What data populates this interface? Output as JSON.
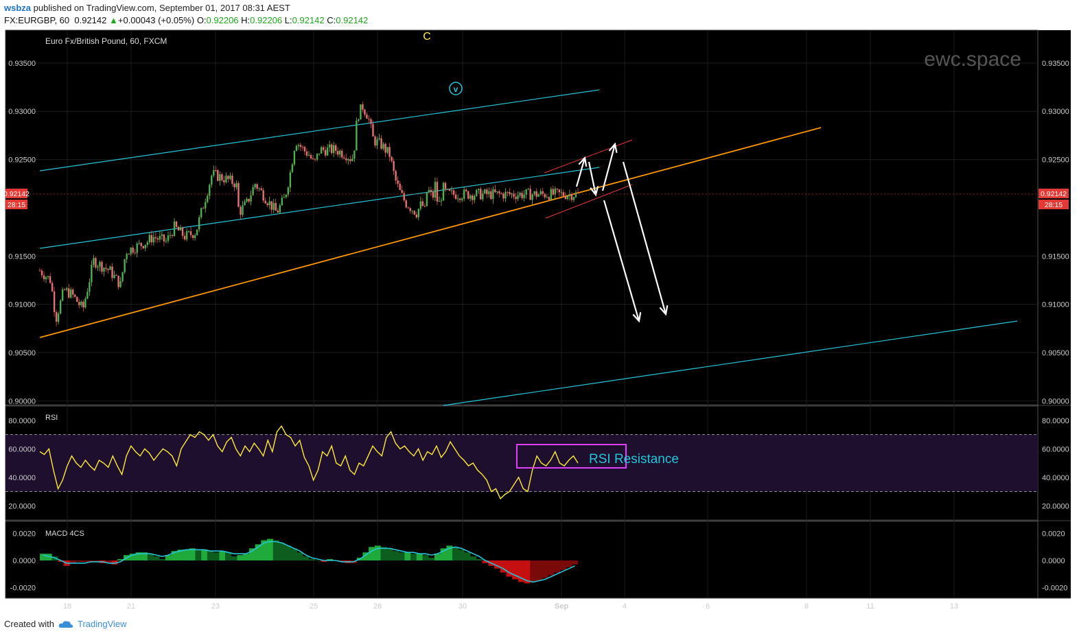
{
  "header": {
    "author": "wsbza",
    "published_text": "published on TradingView.com, September 01, 2017 08:31 AEST",
    "symbol": "FX:EURGBP, 60",
    "last": "0.92142",
    "change": "+0.00043 (+0.05%)",
    "o_label": "O:",
    "o": "0.92206",
    "h_label": "H:",
    "h": "0.92206",
    "l_label": "L:",
    "l": "0.92142",
    "c_label": "C:",
    "c": "0.92142"
  },
  "footer": {
    "created_with": "Created with",
    "brand": "TradingView"
  },
  "chart_data": [
    {
      "type": "candlestick",
      "title": "Euro Fx/British Pound, 60, FXCM",
      "watermark": "ewc.space",
      "ylim": [
        0.8996,
        0.9384
      ],
      "y_ticks": [
        0.935,
        0.93,
        0.925,
        0.915,
        0.91,
        0.905,
        0.9
      ],
      "y_tick_labels": [
        "0.93500",
        "0.93000",
        "0.92500",
        "0.91500",
        "0.91000",
        "0.90500",
        "0.90000"
      ],
      "x_tick_labels": [
        "18",
        "21",
        "23",
        "25",
        "28",
        "30",
        "Sep",
        "4",
        "6",
        "8",
        "11",
        "13"
      ],
      "last_price_label": "0.92142",
      "countdown_label": "28:15",
      "wave_labels": [
        {
          "text": "C",
          "color": "#ffeb3b"
        },
        {
          "text": "v",
          "color": "#26c6da"
        }
      ],
      "price_path": [
        [
          0,
          0.9135
        ],
        [
          0.02,
          0.9125
        ],
        [
          0.03,
          0.9085
        ],
        [
          0.045,
          0.9115
        ],
        [
          0.06,
          0.911
        ],
        [
          0.08,
          0.9095
        ],
        [
          0.1,
          0.9145
        ],
        [
          0.13,
          0.9135
        ],
        [
          0.15,
          0.912
        ],
        [
          0.16,
          0.9155
        ],
        [
          0.2,
          0.9165
        ],
        [
          0.21,
          0.917
        ],
        [
          0.235,
          0.9165
        ],
        [
          0.25,
          0.918
        ],
        [
          0.27,
          0.917
        ],
        [
          0.29,
          0.9175
        ],
        [
          0.305,
          0.9205
        ],
        [
          0.32,
          0.9235
        ],
        [
          0.345,
          0.923
        ],
        [
          0.365,
          0.9225
        ],
        [
          0.37,
          0.9195
        ],
        [
          0.385,
          0.9205
        ],
        [
          0.4,
          0.9225
        ],
        [
          0.42,
          0.921
        ],
        [
          0.44,
          0.9195
        ],
        [
          0.455,
          0.921
        ],
        [
          0.465,
          0.9235
        ],
        [
          0.475,
          0.927
        ],
        [
          0.49,
          0.926
        ],
        [
          0.5,
          0.9255
        ],
        [
          0.51,
          0.9245
        ],
        [
          0.52,
          0.926
        ],
        [
          0.53,
          0.926
        ],
        [
          0.55,
          0.926
        ],
        [
          0.57,
          0.9255
        ],
        [
          0.58,
          0.925
        ],
        [
          0.585,
          0.9265
        ],
        [
          0.59,
          0.9295
        ],
        [
          0.6,
          0.9305
        ],
        [
          0.61,
          0.9295
        ],
        [
          0.62,
          0.927
        ],
        [
          0.635,
          0.9265
        ],
        [
          0.65,
          0.9255
        ],
        [
          0.66,
          0.923
        ],
        [
          0.67,
          0.9215
        ],
        [
          0.68,
          0.9205
        ],
        [
          0.69,
          0.92
        ],
        [
          0.7,
          0.9195
        ],
        [
          0.71,
          0.9205
        ],
        [
          0.715,
          0.9195
        ],
        [
          0.72,
          0.922
        ],
        [
          0.73,
          0.921
        ],
        [
          0.735,
          0.9225
        ],
        [
          0.74,
          0.92
        ],
        [
          0.75,
          0.922
        ],
        [
          0.756,
          0.9214
        ]
      ]
    },
    {
      "type": "line",
      "title": "RSI",
      "ylim": [
        10,
        90
      ],
      "y_tick_labels": [
        "80.0000",
        "60.0000",
        "40.0000",
        "20.0000"
      ],
      "y_ticks": [
        80,
        60,
        40,
        20
      ],
      "bands": [
        70,
        30
      ],
      "annotation": "RSI Resistance",
      "series": [
        {
          "values": [
            58,
            56,
            60,
            45,
            32,
            38,
            48,
            55,
            50,
            47,
            52,
            48,
            45,
            52,
            50,
            47,
            55,
            48,
            42,
            55,
            62,
            58,
            55,
            60,
            57,
            52,
            56,
            60,
            58,
            55,
            48,
            60,
            65,
            70,
            68,
            72,
            70,
            66,
            70,
            62,
            58,
            65,
            68,
            60,
            55,
            62,
            58,
            64,
            60,
            55,
            66,
            58,
            72,
            76,
            70,
            68,
            62,
            66,
            54,
            48,
            38,
            45,
            58,
            55,
            62,
            50,
            48,
            55,
            45,
            42,
            50,
            48,
            55,
            62,
            58,
            55,
            68,
            72,
            64,
            60,
            62,
            58,
            55,
            60,
            52,
            58,
            56,
            62,
            54,
            58,
            65,
            60,
            55,
            52,
            48,
            50,
            45,
            42,
            38,
            30,
            32,
            25,
            28,
            30,
            35,
            40,
            32,
            30,
            45,
            55,
            50,
            48,
            52,
            58,
            50,
            48,
            52,
            55,
            50
          ]
        }
      ]
    },
    {
      "type": "histogram",
      "title": "MACD 4CS",
      "ylim": [
        -0.0028,
        0.0029
      ],
      "y_ticks": [
        0.002,
        0,
        -0.002
      ],
      "y_tick_labels": [
        "0.0020",
        "0.0000",
        "-0.0020"
      ],
      "series": [
        {
          "name": "histogram",
          "values": [
            0.0005,
            0.0005,
            0.0003,
            -0.0001,
            -0.0004,
            -0.0002,
            -0.0001,
            -0.0001,
            -0.0001,
            -0.0001,
            -0.0002,
            -0.0002,
            -0.0003,
            0.0001,
            0.0004,
            0.0005,
            0.0006,
            0.0006,
            0.0005,
            0.0003,
            0.0001,
            0.0004,
            0.0007,
            0.0008,
            0.0008,
            0.0009,
            0.0008,
            0.0008,
            0.0007,
            0.0006,
            0.0007,
            0.0006,
            0.0003,
            0.0004,
            0.0005,
            0.0009,
            0.0012,
            0.0015,
            0.0016,
            0.0015,
            0.0013,
            0.0011,
            0.0009,
            0.0006,
            0.0003,
            0.0001,
            0.0,
            -0.0001,
            0.0001,
            0.0,
            -0.0001,
            -0.0002,
            -0.0002,
            0.0002,
            0.0006,
            0.001,
            0.0011,
            0.001,
            0.0009,
            0.0007,
            0.0006,
            0.0006,
            0.0005,
            0.0005,
            0.0004,
            0.0002,
            0.0005,
            0.0009,
            0.0011,
            0.001,
            0.0008,
            0.0006,
            0.0003,
            0.0001,
            -0.0002,
            -0.0004,
            -0.0006,
            -0.0009,
            -0.0012,
            -0.0014,
            -0.0016,
            -0.0017,
            -0.0016,
            -0.0015,
            -0.0013,
            -0.0011,
            -0.0009,
            -0.0007,
            -0.0005,
            -0.0003
          ]
        },
        {
          "name": "signal",
          "values": [
            0.0004,
            0.0003,
            0.0002,
            0.0,
            -0.0002,
            -0.0002,
            -0.0002,
            -0.0002,
            -0.0001,
            -0.0001,
            -0.0001,
            -0.0002,
            -0.0002,
            -0.0001,
            0.0002,
            0.0004,
            0.0005,
            0.0005,
            0.0005,
            0.0004,
            0.0003,
            0.0004,
            0.0006,
            0.0007,
            0.0008,
            0.0008,
            0.0008,
            0.0008,
            0.0007,
            0.0007,
            0.0007,
            0.0006,
            0.0005,
            0.0005,
            0.0005,
            0.0007,
            0.001,
            0.0013,
            0.0014,
            0.0014,
            0.0013,
            0.0011,
            0.0009,
            0.0007,
            0.0004,
            0.0002,
            0.0001,
            0.0,
            0.0,
            0.0,
            -0.0001,
            -0.0001,
            -0.0001,
            0.0001,
            0.0004,
            0.0007,
            0.0009,
            0.0009,
            0.0009,
            0.0008,
            0.0007,
            0.0006,
            0.0006,
            0.0005,
            0.0005,
            0.0004,
            0.0005,
            0.0007,
            0.0009,
            0.001,
            0.0009,
            0.0007,
            0.0005,
            0.0003,
            0.0,
            -0.0002,
            -0.0004,
            -0.0006,
            -0.0009,
            -0.0011,
            -0.0013,
            -0.0015,
            -0.0016,
            -0.0015,
            -0.0014,
            -0.0012,
            -0.001,
            -0.0008,
            -0.0006,
            -0.0004
          ]
        }
      ]
    }
  ]
}
